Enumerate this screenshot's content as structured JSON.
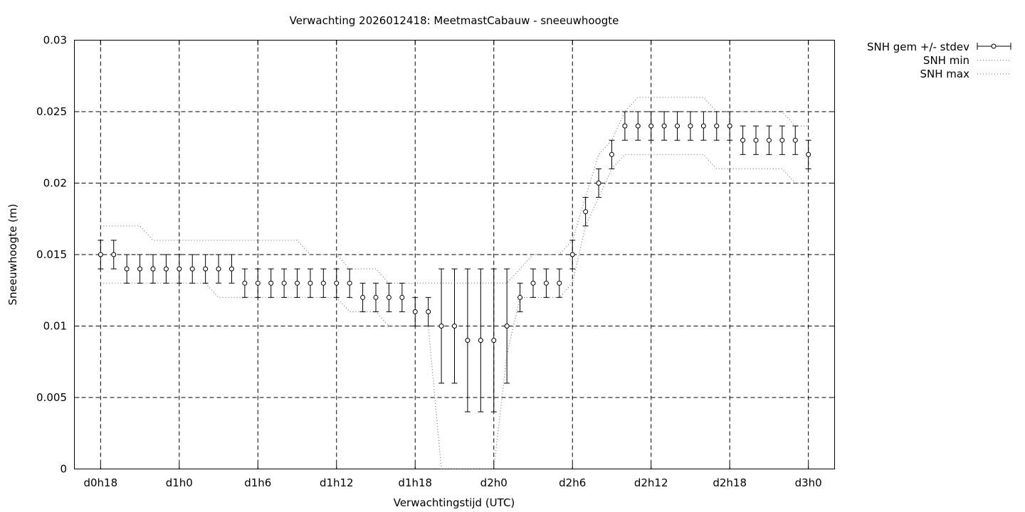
{
  "chart_data": {
    "type": "line",
    "title": "Verwachting 2026012418: MeetmastCabauw - sneeuwhoogte",
    "xlabel": "Verwachtingstijd (UTC)",
    "ylabel": "Sneeuwhoogte (m)",
    "ylim": [
      0,
      0.03
    ],
    "xlim_hours": [
      -2,
      56
    ],
    "grid": true,
    "legend_position": "top-right, outside plot",
    "yticks": [
      {
        "value": 0,
        "label": "0"
      },
      {
        "value": 0.005,
        "label": "0.005"
      },
      {
        "value": 0.01,
        "label": "0.01"
      },
      {
        "value": 0.015,
        "label": "0.015"
      },
      {
        "value": 0.02,
        "label": "0.02"
      },
      {
        "value": 0.025,
        "label": "0.025"
      },
      {
        "value": 0.03,
        "label": "0.03"
      }
    ],
    "xticks": [
      {
        "value": 0,
        "label": "d0h18"
      },
      {
        "value": 6,
        "label": "d1h0"
      },
      {
        "value": 12,
        "label": "d1h6"
      },
      {
        "value": 18,
        "label": "d1h12"
      },
      {
        "value": 24,
        "label": "d1h18"
      },
      {
        "value": 30,
        "label": "d2h0"
      },
      {
        "value": 36,
        "label": "d2h6"
      },
      {
        "value": 42,
        "label": "d2h12"
      },
      {
        "value": 48,
        "label": "d2h18"
      },
      {
        "value": 54,
        "label": "d3h0"
      }
    ],
    "x": [
      0,
      1,
      2,
      3,
      4,
      5,
      6,
      7,
      8,
      9,
      10,
      11,
      12,
      13,
      14,
      15,
      16,
      17,
      18,
      19,
      20,
      21,
      22,
      23,
      24,
      25,
      26,
      27,
      28,
      29,
      30,
      31,
      32,
      33,
      34,
      35,
      36,
      37,
      38,
      39,
      40,
      41,
      42,
      43,
      44,
      45,
      46,
      47,
      48,
      49,
      50,
      51,
      52,
      53,
      54
    ],
    "series": [
      {
        "name": "SNH gem +/- stdev",
        "style": "errorbars",
        "values": [
          0.015,
          0.015,
          0.014,
          0.014,
          0.014,
          0.014,
          0.014,
          0.014,
          0.014,
          0.014,
          0.014,
          0.013,
          0.013,
          0.013,
          0.013,
          0.013,
          0.013,
          0.013,
          0.013,
          0.013,
          0.012,
          0.012,
          0.012,
          0.012,
          0.011,
          0.011,
          0.01,
          0.01,
          0.009,
          0.009,
          0.009,
          0.01,
          0.012,
          0.013,
          0.013,
          0.013,
          0.015,
          0.018,
          0.02,
          0.022,
          0.024,
          0.024,
          0.024,
          0.024,
          0.024,
          0.024,
          0.024,
          0.024,
          0.024,
          0.023,
          0.023,
          0.023,
          0.023,
          0.023,
          0.022
        ],
        "low": [
          0.014,
          0.014,
          0.013,
          0.013,
          0.013,
          0.013,
          0.013,
          0.013,
          0.013,
          0.013,
          0.013,
          0.012,
          0.012,
          0.012,
          0.012,
          0.012,
          0.012,
          0.012,
          0.012,
          0.012,
          0.011,
          0.011,
          0.011,
          0.011,
          0.01,
          0.01,
          0.006,
          0.006,
          0.004,
          0.004,
          0.004,
          0.006,
          0.011,
          0.012,
          0.012,
          0.012,
          0.014,
          0.017,
          0.019,
          0.021,
          0.023,
          0.023,
          0.023,
          0.023,
          0.023,
          0.023,
          0.023,
          0.023,
          0.023,
          0.022,
          0.022,
          0.022,
          0.022,
          0.022,
          0.021
        ],
        "high": [
          0.016,
          0.016,
          0.015,
          0.015,
          0.015,
          0.015,
          0.015,
          0.015,
          0.015,
          0.015,
          0.015,
          0.014,
          0.014,
          0.014,
          0.014,
          0.014,
          0.014,
          0.014,
          0.014,
          0.014,
          0.013,
          0.013,
          0.013,
          0.013,
          0.012,
          0.012,
          0.014,
          0.014,
          0.014,
          0.014,
          0.014,
          0.014,
          0.013,
          0.014,
          0.014,
          0.014,
          0.016,
          0.019,
          0.021,
          0.023,
          0.025,
          0.025,
          0.025,
          0.025,
          0.025,
          0.025,
          0.025,
          0.025,
          0.025,
          0.024,
          0.024,
          0.024,
          0.024,
          0.024,
          0.023
        ]
      },
      {
        "name": "SNH min",
        "style": "dotted",
        "values": [
          0.013,
          0.013,
          0.013,
          0.013,
          0.013,
          0.013,
          0.013,
          0.013,
          0.013,
          0.012,
          0.012,
          0.012,
          0.012,
          0.012,
          0.012,
          0.012,
          0.012,
          0.012,
          0.012,
          0.011,
          0.011,
          0.011,
          0.01,
          0.01,
          0.01,
          0.01,
          0.0,
          0.0,
          0.0,
          0.0,
          0.0,
          0.008,
          0.012,
          0.012,
          0.012,
          0.012,
          0.013,
          0.017,
          0.019,
          0.021,
          0.022,
          0.022,
          0.022,
          0.022,
          0.022,
          0.022,
          0.022,
          0.021,
          0.021,
          0.021,
          0.021,
          0.021,
          0.021,
          0.02,
          0.02
        ]
      },
      {
        "name": "SNH max",
        "style": "dotted",
        "values": [
          0.017,
          0.017,
          0.017,
          0.017,
          0.016,
          0.016,
          0.016,
          0.016,
          0.016,
          0.016,
          0.016,
          0.016,
          0.016,
          0.016,
          0.016,
          0.016,
          0.015,
          0.015,
          0.015,
          0.014,
          0.014,
          0.014,
          0.013,
          0.013,
          0.013,
          0.013,
          0.013,
          0.013,
          0.013,
          0.013,
          0.013,
          0.013,
          0.014,
          0.015,
          0.015,
          0.015,
          0.016,
          0.019,
          0.022,
          0.023,
          0.025,
          0.026,
          0.026,
          0.026,
          0.026,
          0.026,
          0.026,
          0.025,
          0.025,
          0.025,
          0.025,
          0.025,
          0.025,
          0.024,
          0.024
        ]
      }
    ]
  }
}
